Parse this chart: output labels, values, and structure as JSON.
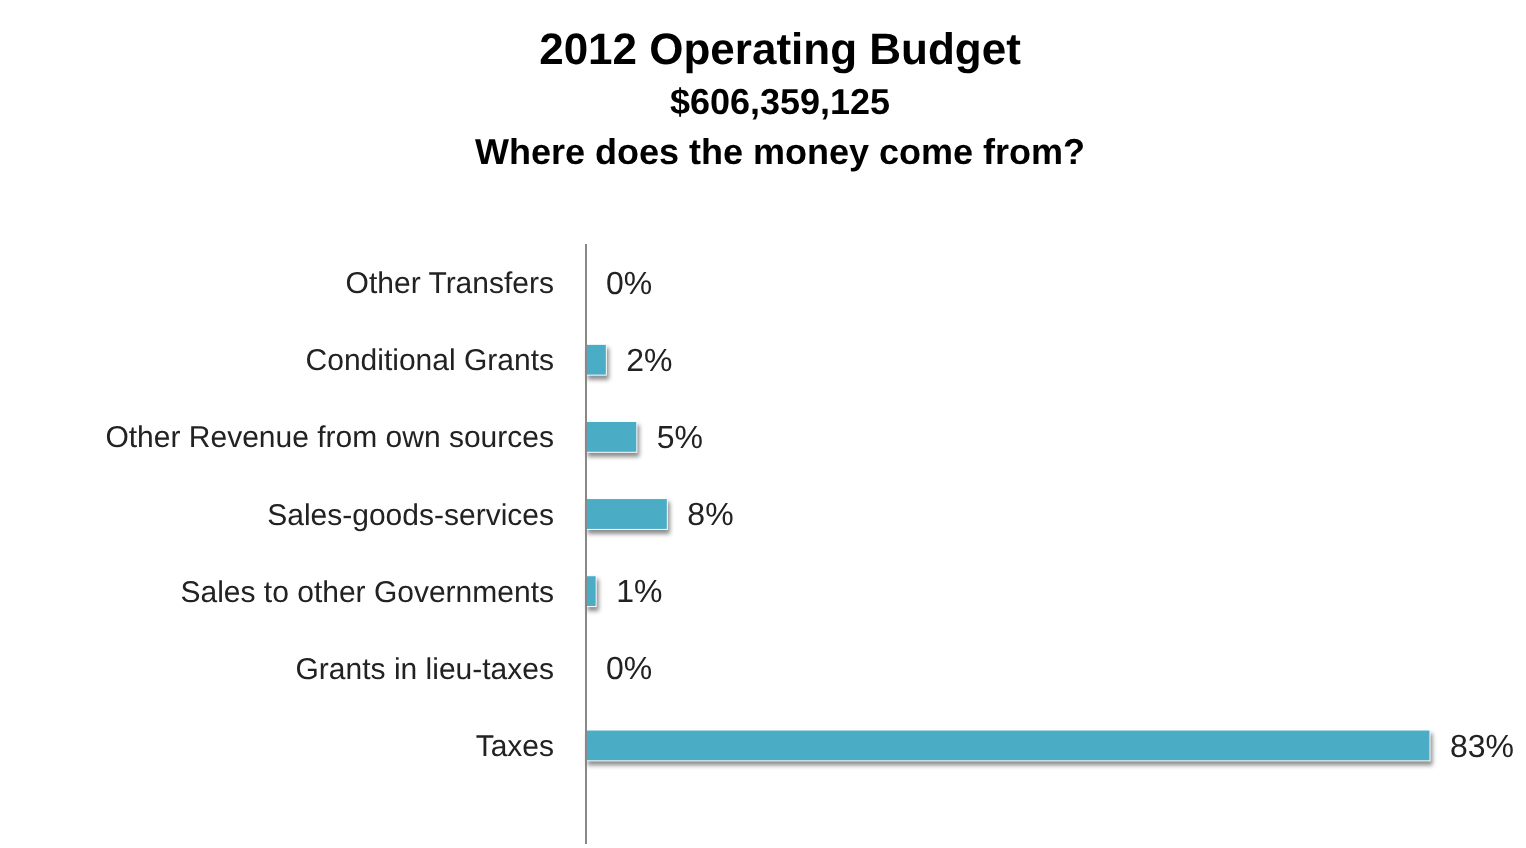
{
  "chart_data": {
    "type": "bar",
    "orientation": "horizontal",
    "title": "2012 Operating Budget\n$606,359,125\nWhere does the money come from?",
    "categories": [
      "Other Transfers",
      "Conditional Grants",
      "Other Revenue from own sources",
      "Sales-goods-services",
      "Sales to other Governments",
      "Grants in lieu-taxes",
      "Taxes"
    ],
    "values": [
      0,
      2,
      5,
      8,
      1,
      0,
      83
    ],
    "value_labels": [
      "0%",
      "2%",
      "5%",
      "8%",
      "1%",
      "0%",
      "83%"
    ],
    "color": "#4bacc6"
  }
}
